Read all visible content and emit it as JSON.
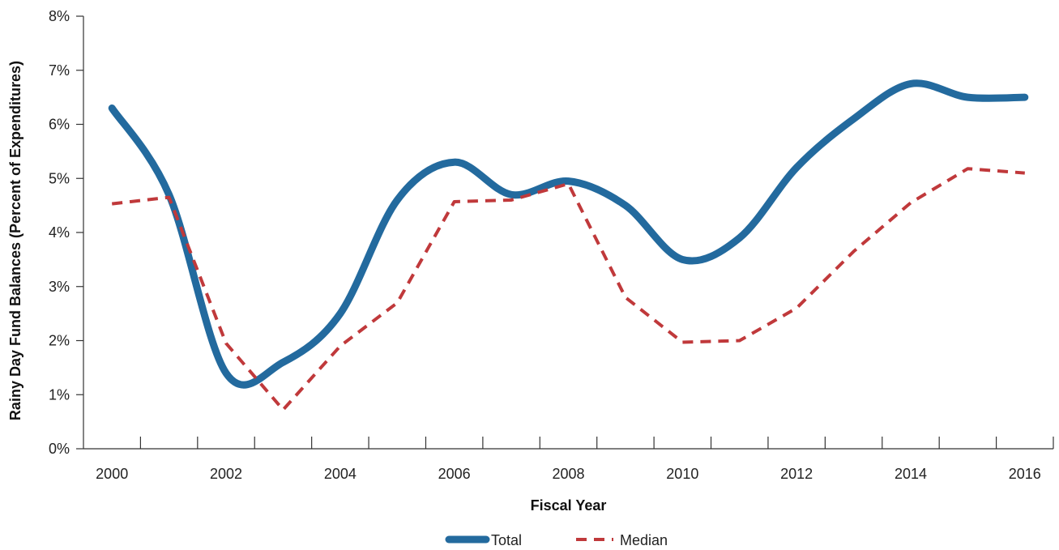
{
  "chart_data": {
    "type": "line",
    "title": "",
    "xlabel": "Fiscal Year",
    "ylabel": "Rainy Day Fund  Balances (Percent of Expenditures)",
    "x": [
      2000,
      2001,
      2002,
      2003,
      2004,
      2005,
      2006,
      2007,
      2008,
      2009,
      2010,
      2011,
      2012,
      2013,
      2014,
      2015,
      2016
    ],
    "xlim": [
      1999.5,
      2016.5
    ],
    "ylim": [
      0,
      8
    ],
    "x_ticks": [
      "2000",
      "2002",
      "2004",
      "2006",
      "2008",
      "2010",
      "2012",
      "2014",
      "2016"
    ],
    "y_ticks": [
      "0%",
      "1%",
      "2%",
      "3%",
      "4%",
      "5%",
      "6%",
      "7%",
      "8%"
    ],
    "grid": false,
    "legend_position": "bottom",
    "series": [
      {
        "name": "Total",
        "color": "#236a9e",
        "style": "solid",
        "values": [
          6.3,
          4.7,
          1.4,
          1.6,
          2.5,
          4.6,
          5.3,
          4.7,
          4.95,
          4.5,
          3.5,
          3.9,
          5.2,
          6.1,
          6.75,
          6.5,
          6.5
        ]
      },
      {
        "name": "Median",
        "color": "#c0393b",
        "style": "dashed",
        "values": [
          4.53,
          4.65,
          1.95,
          0.72,
          1.9,
          2.7,
          4.57,
          4.6,
          4.9,
          2.8,
          1.97,
          2.0,
          2.6,
          3.65,
          4.55,
          5.18,
          5.1
        ]
      }
    ]
  }
}
